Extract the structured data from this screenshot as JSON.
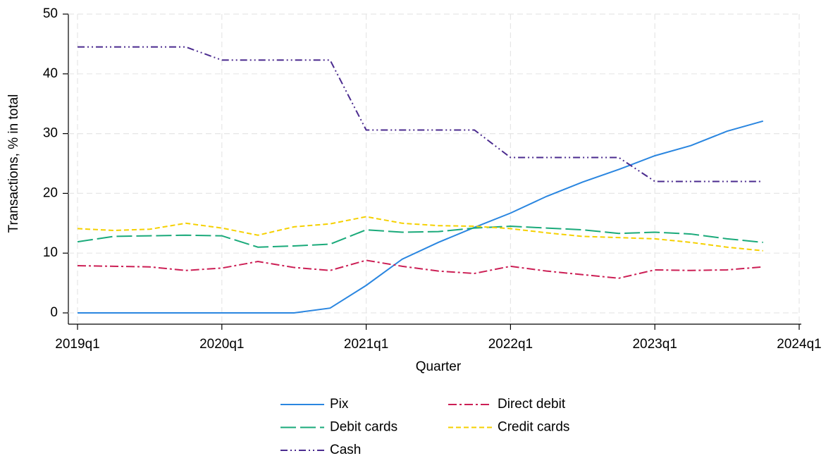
{
  "chart_data": {
    "type": "line",
    "x_label": "Quarter",
    "y_label": "Transactions, % in total",
    "x": [
      2019,
      2019.25,
      2019.5,
      2019.75,
      2020,
      2020.25,
      2020.5,
      2020.75,
      2021,
      2021.25,
      2021.5,
      2021.75,
      2022,
      2022.25,
      2022.5,
      2022.75,
      2023,
      2023.25,
      2023.5,
      2023.75
    ],
    "series": [
      {
        "name": "Pix",
        "color": "#2a86e0",
        "values": [
          0,
          0,
          0,
          0,
          0,
          0,
          0,
          0.8,
          4.6,
          9.0,
          11.8,
          14.3,
          16.7,
          19.5,
          21.9,
          24.0,
          26.3,
          28.0,
          30.4,
          32.1
        ]
      },
      {
        "name": "Debit cards",
        "color": "#1aaa7a",
        "values": [
          11.9,
          12.8,
          12.9,
          13.0,
          12.9,
          11.0,
          11.2,
          11.5,
          13.9,
          13.5,
          13.6,
          14.2,
          14.5,
          14.2,
          13.9,
          13.3,
          13.5,
          13.2,
          12.4,
          11.8
        ]
      },
      {
        "name": "Cash",
        "color": "#4b2b8f",
        "values": [
          44.5,
          44.5,
          44.5,
          44.5,
          42.3,
          42.3,
          42.3,
          42.3,
          30.6,
          30.6,
          30.6,
          30.6,
          26.0,
          26.0,
          26.0,
          26.0,
          22.0,
          22.0,
          22.0,
          22.0
        ]
      },
      {
        "name": "Direct debit",
        "color": "#cc1f55",
        "values": [
          7.9,
          7.8,
          7.7,
          7.1,
          7.5,
          8.6,
          7.6,
          7.1,
          8.8,
          7.8,
          7.0,
          6.6,
          7.8,
          7.0,
          6.4,
          5.8,
          7.2,
          7.1,
          7.2,
          7.7
        ]
      },
      {
        "name": "Credit cards",
        "color": "#f5d000",
        "values": [
          14.1,
          13.8,
          14.0,
          15.0,
          14.2,
          13.0,
          14.4,
          14.9,
          16.1,
          15.0,
          14.6,
          14.5,
          14.1,
          13.4,
          12.8,
          12.6,
          12.4,
          11.8,
          11.0,
          10.4
        ]
      }
    ],
    "xlim": [
      2019,
      2024
    ],
    "xticks": [
      {
        "value": 2019,
        "label": "2019q1"
      },
      {
        "value": 2020,
        "label": "2020q1"
      },
      {
        "value": 2021,
        "label": "2021q1"
      },
      {
        "value": 2022,
        "label": "2022q1"
      },
      {
        "value": 2023,
        "label": "2023q1"
      },
      {
        "value": 2024,
        "label": "2024q1"
      }
    ],
    "ylim": [
      0,
      50
    ],
    "yticks": [
      0,
      10,
      20,
      30,
      40,
      50
    ],
    "grid": true,
    "legend": "bottom"
  }
}
